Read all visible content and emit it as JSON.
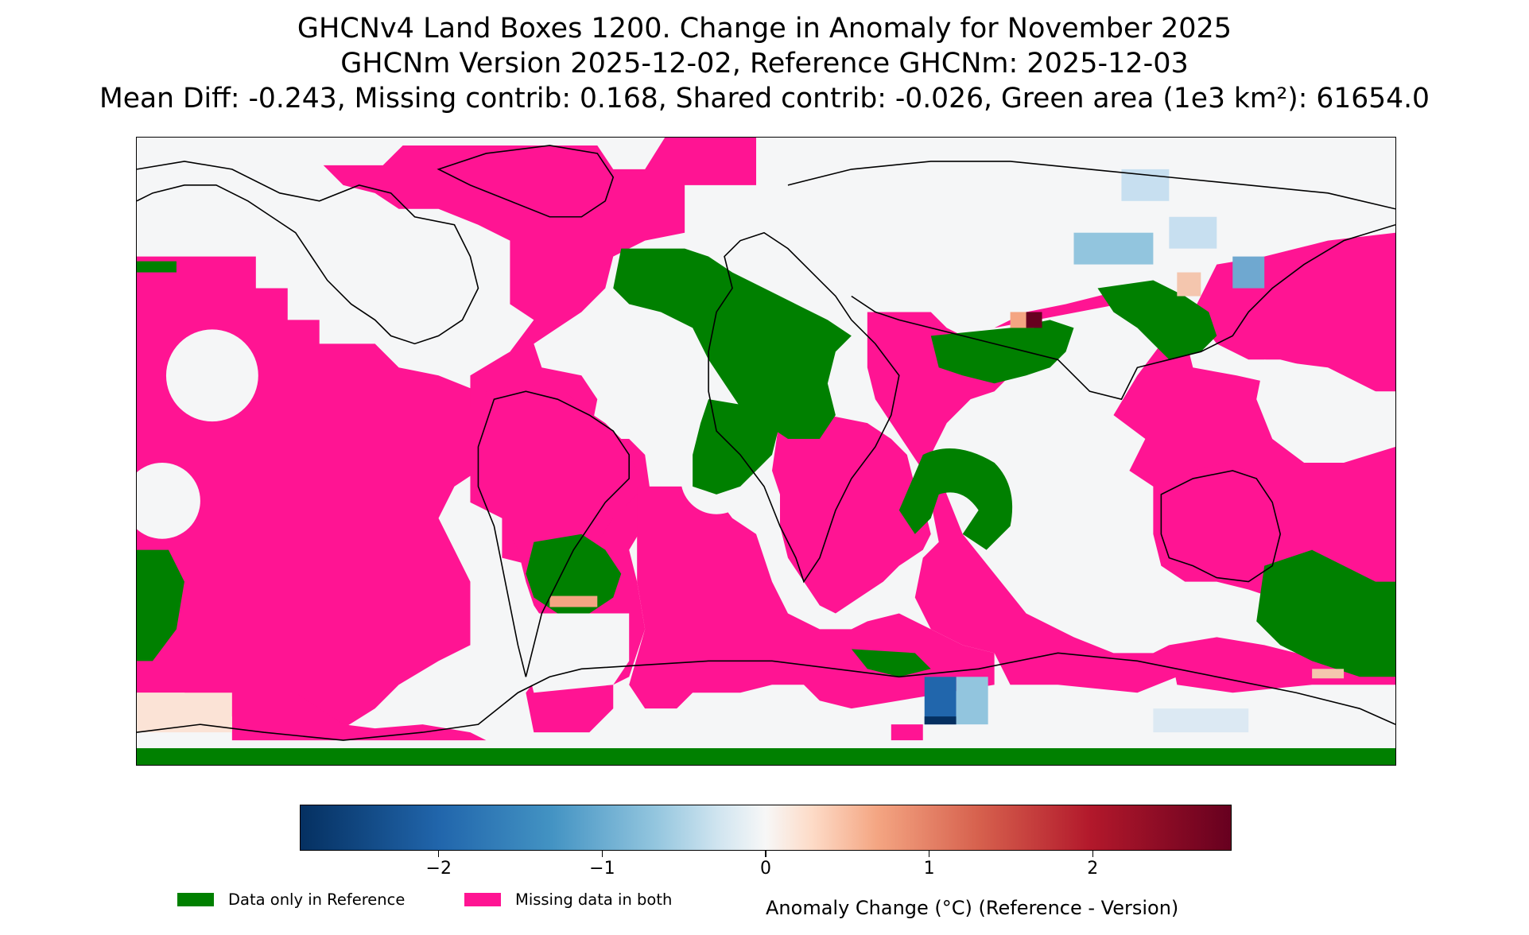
{
  "title": {
    "line1": "GHCNv4 Land Boxes 1200. Change in Anomaly for November 2025",
    "line2": "GHCNm Version 2025-12-02, Reference GHCNm: 2025-12-03",
    "line3": "Mean Diff: -0.243, Missing contrib: 0.168, Shared contrib: -0.026, Green area (1e3 km²): 61654.0"
  },
  "colors": {
    "missing_both": "#ff1493",
    "reference_only": "#008000",
    "no_change": "#f5f6f7"
  },
  "colorbar": {
    "label": "Anomaly Change (°C) (Reference - Version)",
    "range": [
      -2.85,
      2.85
    ],
    "colormap": "RdBu_r",
    "ticks": [
      {
        "value": -2,
        "label": "−2"
      },
      {
        "value": -1,
        "label": "−1"
      },
      {
        "value": 0,
        "label": "0"
      },
      {
        "value": 1,
        "label": "1"
      },
      {
        "value": 2,
        "label": "2"
      }
    ]
  },
  "legend": [
    {
      "label": "Data only in Reference",
      "color": "#008000",
      "icon": "green-swatch"
    },
    {
      "label": "Missing data in both",
      "color": "#ff1493",
      "icon": "pink-swatch"
    }
  ]
}
